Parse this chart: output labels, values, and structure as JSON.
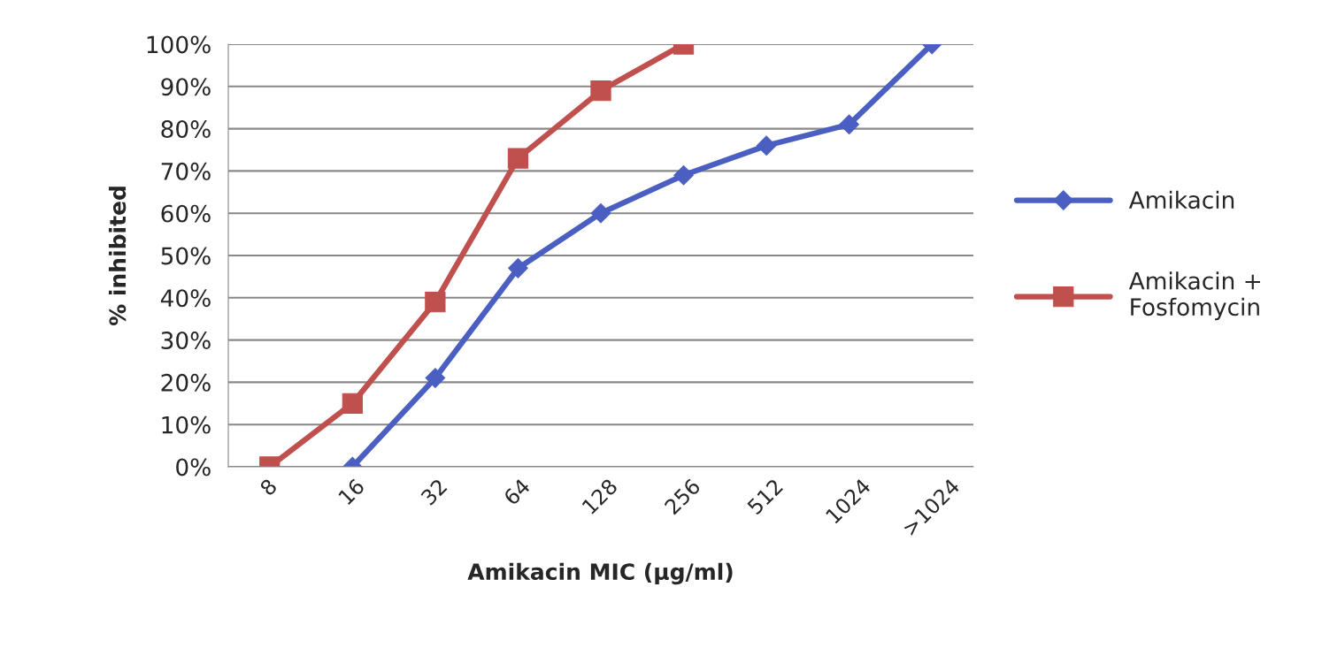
{
  "chart_data": {
    "type": "line",
    "xlabel": "Amikacin MIC (µg/ml)",
    "ylabel": "% inhibited",
    "categories": [
      "8",
      "16",
      "32",
      "64",
      "128",
      "256",
      "512",
      "1024",
      ">1024"
    ],
    "series": [
      {
        "name": "Amikacin",
        "color": "#4a5fc1",
        "marker": "diamond",
        "values": [
          null,
          0,
          21,
          47,
          60,
          69,
          76,
          81,
          100
        ]
      },
      {
        "name": "Amikacin + Fosfomycin",
        "color": "#c0504d",
        "marker": "square",
        "values": [
          0,
          15,
          39,
          73,
          89,
          100,
          null,
          null,
          null
        ]
      }
    ],
    "ylim": [
      0,
      100
    ],
    "yticks": [
      {
        "value": 0,
        "label": "0%"
      },
      {
        "value": 10,
        "label": "10%"
      },
      {
        "value": 20,
        "label": "20%"
      },
      {
        "value": 30,
        "label": "30%"
      },
      {
        "value": 40,
        "label": "40%"
      },
      {
        "value": 50,
        "label": "50%"
      },
      {
        "value": 60,
        "label": "60%"
      },
      {
        "value": 70,
        "label": "70%"
      },
      {
        "value": 80,
        "label": "80%"
      },
      {
        "value": 90,
        "label": "90%"
      },
      {
        "value": 100,
        "label": "100%"
      }
    ],
    "grid": "y",
    "legend": "right",
    "line_style": "solid"
  }
}
